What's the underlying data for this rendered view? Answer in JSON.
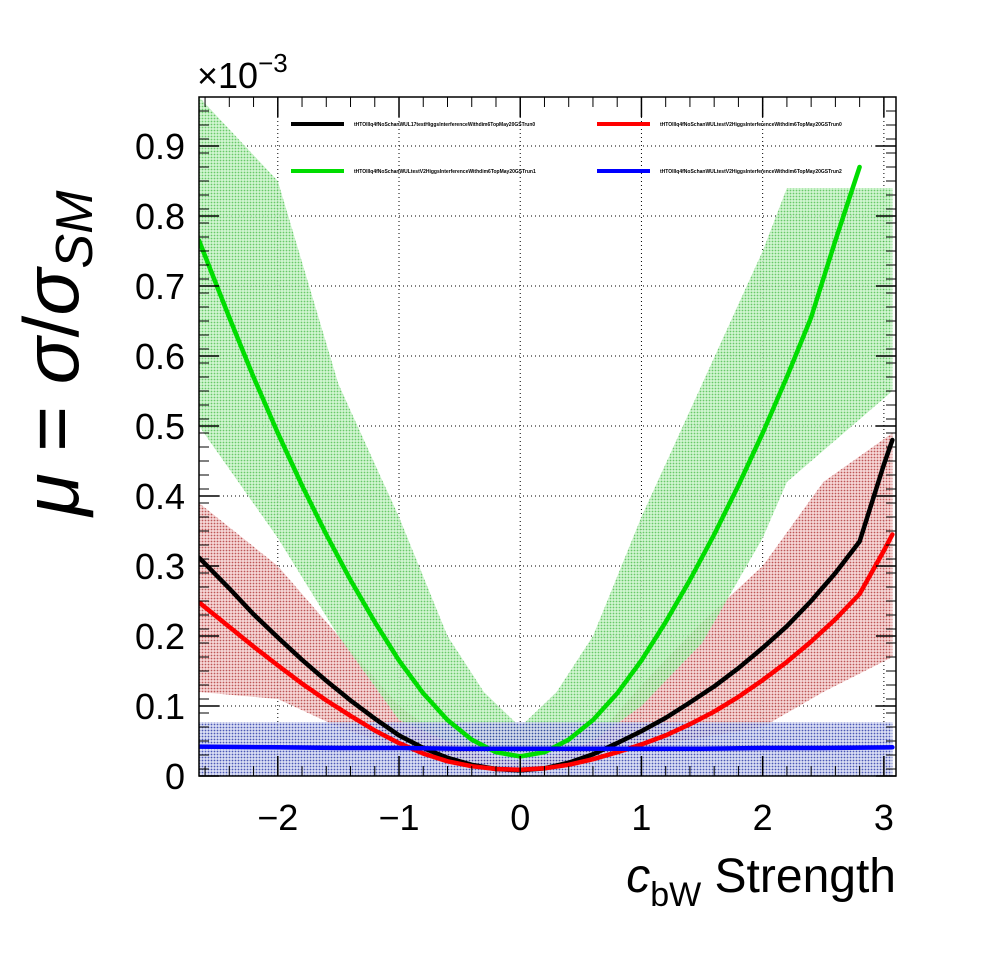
{
  "chart_data": {
    "type": "line",
    "title": "",
    "xlabel": {
      "main": "c",
      "sub": "bW",
      "suffix": " Strength"
    },
    "ylabel": {
      "mu": "μ",
      "eq": " = ",
      "sigma": "σ",
      "slash": "/",
      "sigma_sm": "σ",
      "sm_sub": "SM"
    },
    "y_exponent": {
      "base": "×10",
      "exp": "−3"
    },
    "xlim": [
      -2.65,
      3.1
    ],
    "ylim": [
      0,
      0.97
    ],
    "grid": true,
    "x_ticks": [
      -2,
      -1,
      0,
      1,
      2,
      3
    ],
    "x_tick_labels": [
      "−2",
      "−1",
      "0",
      "1",
      "2",
      "3"
    ],
    "y_ticks": [
      0,
      0.1,
      0.2,
      0.3,
      0.4,
      0.5,
      0.6,
      0.7,
      0.8,
      0.9
    ],
    "y_tick_labels": [
      "0",
      "0.1",
      "0.2",
      "0.3",
      "0.4",
      "0.5",
      "0.6",
      "0.7",
      "0.8",
      "0.9"
    ],
    "legend_position": "top",
    "series": [
      {
        "name": "tHTOlllq4fNoSchanWUL17testHiggsInterferenceWithdim6TopMay20GSTrun0",
        "color": "#000000",
        "x": [
          -2.65,
          -2.4,
          -2.2,
          -2.0,
          -1.8,
          -1.6,
          -1.4,
          -1.2,
          -1.0,
          -0.8,
          -0.6,
          -0.4,
          -0.2,
          0.0,
          0.2,
          0.4,
          0.6,
          0.8,
          1.0,
          1.2,
          1.4,
          1.6,
          1.8,
          2.0,
          2.2,
          2.4,
          2.6,
          2.8,
          3.0,
          3.07
        ],
        "y": [
          0.312,
          0.268,
          0.231,
          0.198,
          0.166,
          0.136,
          0.108,
          0.082,
          0.058,
          0.04,
          0.026,
          0.016,
          0.01,
          0.008,
          0.011,
          0.019,
          0.031,
          0.047,
          0.064,
          0.083,
          0.105,
          0.128,
          0.154,
          0.183,
          0.214,
          0.25,
          0.29,
          0.335,
          0.445,
          0.48
        ]
      },
      {
        "name": "tHTOlllq4fNoSchanWULtestV2HiggsInterferenceWithdim6TopMay20GSTrun0",
        "color": "#ff0000",
        "x": [
          -2.65,
          -2.4,
          -2.2,
          -2.0,
          -1.8,
          -1.6,
          -1.4,
          -1.2,
          -1.0,
          -0.8,
          -0.6,
          -0.4,
          -0.2,
          0.0,
          0.2,
          0.4,
          0.6,
          0.8,
          1.0,
          1.2,
          1.4,
          1.6,
          1.8,
          2.0,
          2.2,
          2.4,
          2.6,
          2.8,
          3.0,
          3.07
        ],
        "y": [
          0.248,
          0.213,
          0.185,
          0.158,
          0.132,
          0.108,
          0.086,
          0.065,
          0.047,
          0.032,
          0.021,
          0.014,
          0.01,
          0.009,
          0.011,
          0.016,
          0.024,
          0.034,
          0.045,
          0.058,
          0.074,
          0.092,
          0.113,
          0.137,
          0.163,
          0.192,
          0.224,
          0.26,
          0.322,
          0.345
        ]
      },
      {
        "name": "tHTOlllq4fNoSchanWULtestV2HiggsInterferenceWithdim6TopMay20GSTrun1",
        "color": "#00dd00",
        "x": [
          -2.65,
          -2.4,
          -2.2,
          -2.0,
          -1.8,
          -1.6,
          -1.4,
          -1.2,
          -1.0,
          -0.8,
          -0.6,
          -0.4,
          -0.2,
          0.0,
          0.2,
          0.4,
          0.6,
          0.8,
          1.0,
          1.2,
          1.4,
          1.6,
          1.8,
          2.0,
          2.2,
          2.4,
          2.6,
          2.8
        ],
        "y": [
          0.765,
          0.655,
          0.57,
          0.49,
          0.415,
          0.345,
          0.28,
          0.22,
          0.165,
          0.118,
          0.08,
          0.052,
          0.034,
          0.028,
          0.034,
          0.052,
          0.08,
          0.118,
          0.165,
          0.22,
          0.28,
          0.345,
          0.415,
          0.49,
          0.57,
          0.655,
          0.765,
          0.87
        ]
      },
      {
        "name": "tHTOlllq4fNoSchanWULtestV2HiggsInterferenceWithdim6TopMay20GSTrun2",
        "color": "#0000ff",
        "x": [
          -2.65,
          -2.0,
          -1.5,
          -1.0,
          -0.5,
          0.0,
          0.5,
          1.0,
          1.5,
          2.0,
          2.5,
          3.07
        ],
        "y": [
          0.042,
          0.041,
          0.04,
          0.04,
          0.039,
          0.039,
          0.039,
          0.039,
          0.039,
          0.04,
          0.04,
          0.041
        ]
      }
    ],
    "bands": [
      {
        "color": "#e9a8a8",
        "x": [
          -2.65,
          -2.0,
          -1.5,
          -1.0,
          -0.6,
          -0.3,
          0.0,
          0.3,
          0.6,
          1.0,
          1.5,
          2.0,
          2.5,
          3.07
        ],
        "lower": [
          0.12,
          0.11,
          0.07,
          0.04,
          0.02,
          0.01,
          0.005,
          0.01,
          0.02,
          0.04,
          0.055,
          0.07,
          0.12,
          0.17
        ],
        "upper": [
          0.39,
          0.3,
          0.2,
          0.1,
          0.05,
          0.03,
          0.02,
          0.03,
          0.05,
          0.13,
          0.22,
          0.3,
          0.42,
          0.49
        ]
      },
      {
        "color": "#8ce08c",
        "x": [
          -2.65,
          -2.0,
          -1.5,
          -1.0,
          -0.6,
          -0.3,
          0.0,
          0.3,
          0.6,
          1.0,
          1.5,
          2.0,
          2.2,
          3.07
        ],
        "lower": [
          0.5,
          0.34,
          0.2,
          0.08,
          0.05,
          0.035,
          0.025,
          0.035,
          0.05,
          0.1,
          0.19,
          0.34,
          0.42,
          0.55
        ],
        "upper": [
          0.97,
          0.85,
          0.56,
          0.37,
          0.2,
          0.12,
          0.07,
          0.12,
          0.2,
          0.37,
          0.56,
          0.75,
          0.84,
          0.84
        ]
      },
      {
        "color": "#7f88cf",
        "x": [
          -2.65,
          3.07
        ],
        "lower": [
          0.0,
          0.0
        ],
        "upper": [
          0.077,
          0.077
        ]
      }
    ]
  }
}
